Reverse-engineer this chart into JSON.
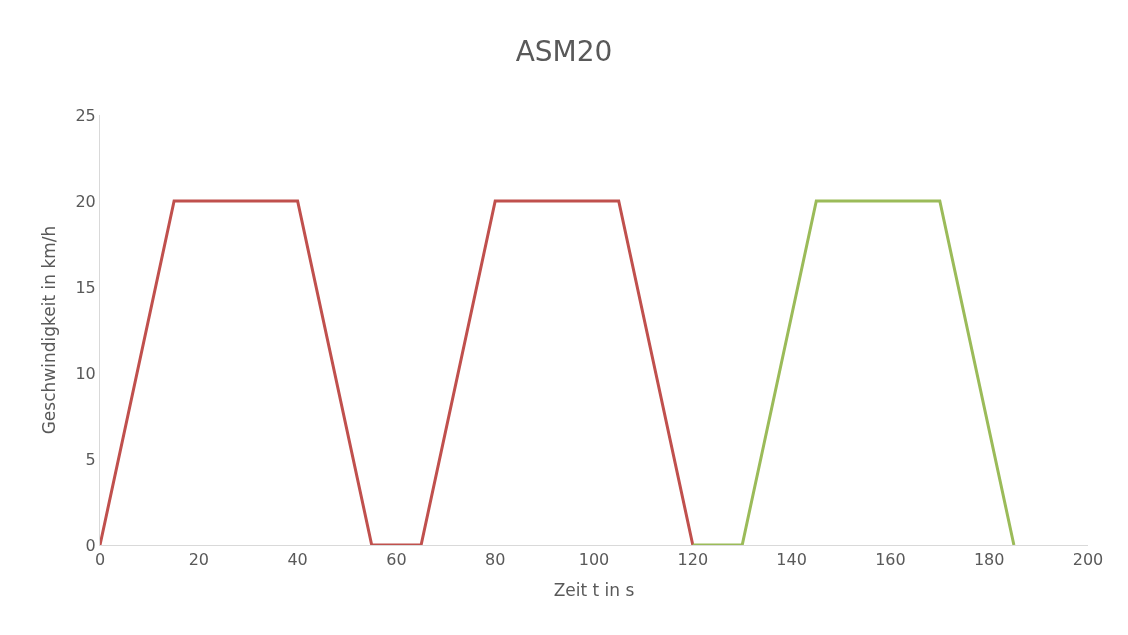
{
  "chart_data": {
    "type": "line",
    "title": "ASM20",
    "xlabel": "Zeit t in s",
    "ylabel": "Geschwindigkeit in km/h",
    "series": [
      {
        "x": [
          0,
          15,
          40,
          55,
          65,
          80,
          105,
          120
        ],
        "values": [
          0,
          20,
          20,
          0,
          0,
          20,
          20,
          0
        ],
        "color": "#c0504d"
      },
      {
        "x": [
          120,
          130,
          145,
          170,
          185
        ],
        "values": [
          0,
          0,
          20,
          20,
          0
        ],
        "color": "#9bbb59"
      }
    ],
    "xlim": [
      0,
      200
    ],
    "xticks": [
      0,
      20,
      40,
      60,
      80,
      100,
      120,
      140,
      160,
      180,
      200
    ],
    "ylim": [
      0,
      25
    ],
    "yticks": [
      0,
      5,
      10,
      15,
      20,
      25
    ],
    "grid": false,
    "marker": "none",
    "line_style": "solid"
  }
}
